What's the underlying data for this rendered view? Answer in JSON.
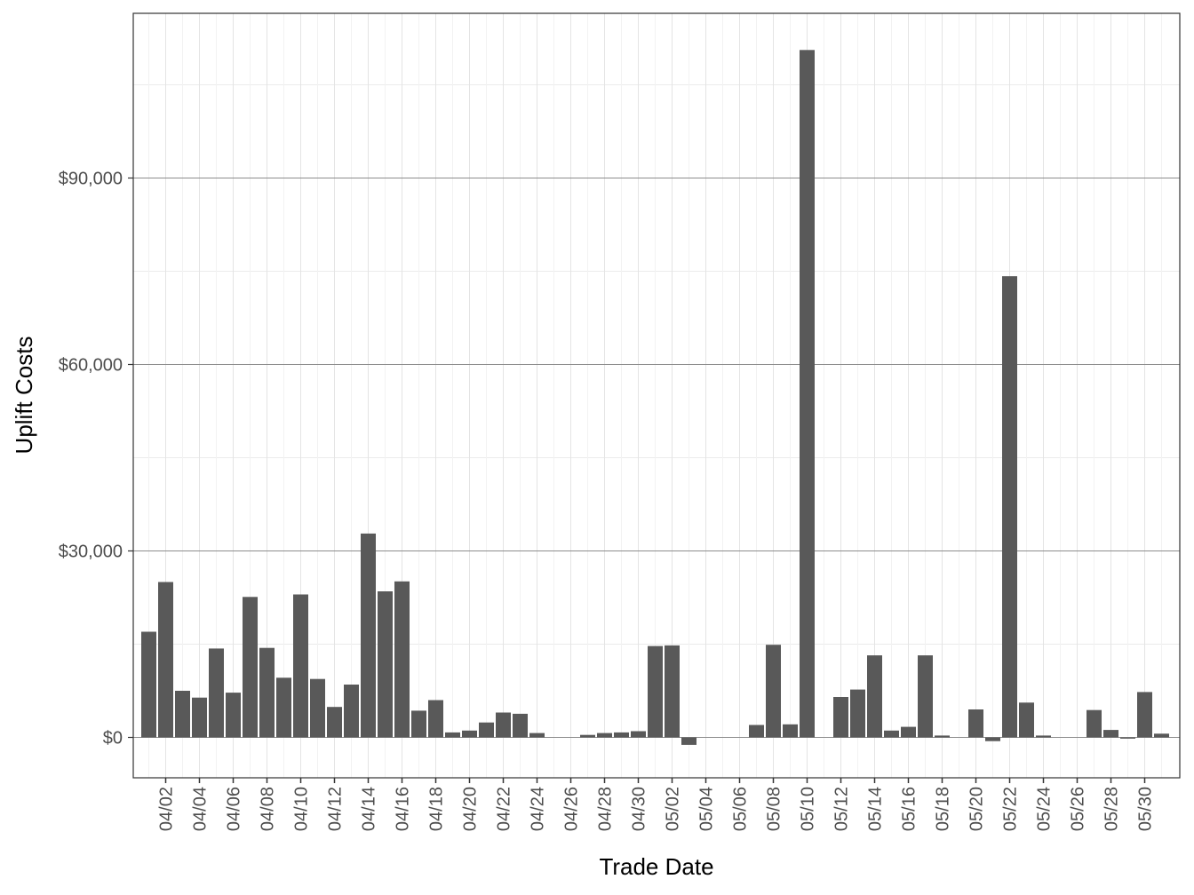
{
  "chart_data": {
    "type": "bar",
    "xlabel": "Trade Date",
    "ylabel": "Uplift Costs",
    "categories": [
      "04/01",
      "04/02",
      "04/03",
      "04/04",
      "04/05",
      "04/06",
      "04/07",
      "04/08",
      "04/09",
      "04/10",
      "04/11",
      "04/12",
      "04/13",
      "04/14",
      "04/15",
      "04/16",
      "04/17",
      "04/18",
      "04/19",
      "04/20",
      "04/21",
      "04/22",
      "04/23",
      "04/24",
      "04/25",
      "04/26",
      "04/27",
      "04/28",
      "04/29",
      "04/30",
      "05/01",
      "05/02",
      "05/03",
      "05/04",
      "05/05",
      "05/06",
      "05/07",
      "05/08",
      "05/09",
      "05/10",
      "05/11",
      "05/12",
      "05/13",
      "05/14",
      "05/15",
      "05/16",
      "05/17",
      "05/18",
      "05/19",
      "05/20",
      "05/21",
      "05/22",
      "05/23",
      "05/24",
      "05/25",
      "05/26",
      "05/27",
      "05/28",
      "05/29",
      "05/30",
      "05/31"
    ],
    "values": [
      17000,
      25000,
      7500,
      6400,
      14300,
      7200,
      22600,
      14400,
      9600,
      23000,
      9400,
      4900,
      8500,
      32800,
      23500,
      25100,
      4300,
      6000,
      800,
      1100,
      2400,
      4000,
      3800,
      700,
      0,
      0,
      400,
      700,
      800,
      1000,
      14700,
      14800,
      -1200,
      0,
      0,
      0,
      2000,
      14900,
      2100,
      110600,
      0,
      6500,
      7700,
      13200,
      1100,
      1700,
      13200,
      300,
      0,
      4500,
      -600,
      74200,
      5600,
      300,
      0,
      0,
      4400,
      1200,
      -200,
      7300,
      600
    ],
    "tick_labels": [
      "04/02",
      "04/04",
      "04/06",
      "04/08",
      "04/10",
      "04/12",
      "04/14",
      "04/16",
      "04/18",
      "04/20",
      "04/22",
      "04/24",
      "04/26",
      "04/28",
      "04/30",
      "05/02",
      "05/04",
      "05/06",
      "05/08",
      "05/10",
      "05/12",
      "05/14",
      "05/16",
      "05/18",
      "05/20",
      "05/22",
      "05/24",
      "05/26",
      "05/28",
      "05/30"
    ],
    "yticks": [
      {
        "value": 0,
        "label": "$0"
      },
      {
        "value": 30000,
        "label": "$30,000"
      },
      {
        "value": 60000,
        "label": "$60,000"
      },
      {
        "value": 90000,
        "label": "$90,000"
      }
    ],
    "ylim": [
      -6500,
      116500
    ],
    "grid": true,
    "bar_color": "#595959"
  }
}
